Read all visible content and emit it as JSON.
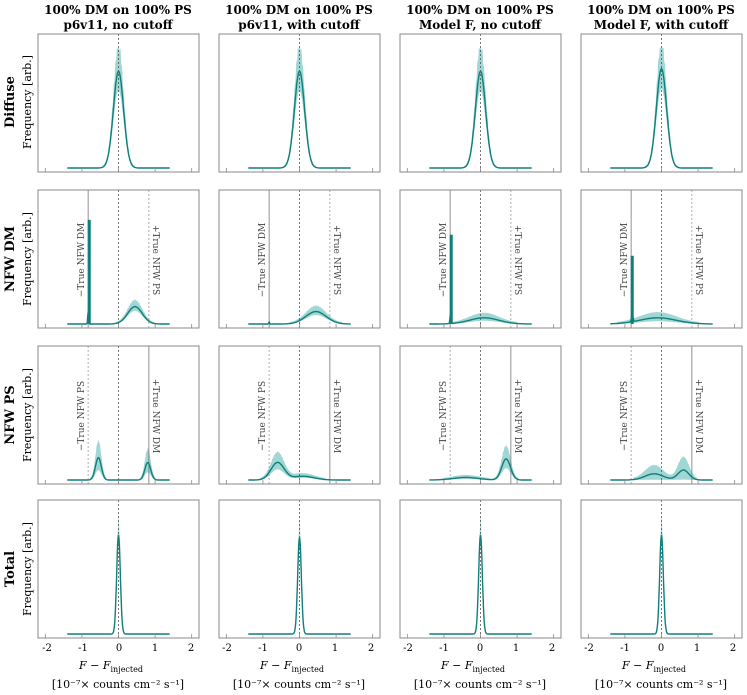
{
  "colors": {
    "band": "#8fcfcb",
    "line": "#0f7f7a",
    "frame": "#888888",
    "ref": "#555555"
  },
  "chart_data": {
    "type": "histogram-grid",
    "columns": [
      {
        "line1": "100% DM on 100% PS",
        "line2": "p6v11, no cutoff"
      },
      {
        "line1": "100% DM on 100% PS",
        "line2": "p6v11, with cutoff"
      },
      {
        "line1": "100% DM on 100% PS",
        "line2": "Model F, no cutoff"
      },
      {
        "line1": "100% DM on 100% PS",
        "line2": "Model F, with cutoff"
      }
    ],
    "rows": [
      {
        "name": "Diffuse",
        "ylabel": "Frequency [arb.]"
      },
      {
        "name": "NFW DM",
        "ylabel": "Frequency [arb.]"
      },
      {
        "name": "NFW PS",
        "ylabel": "Frequency [arb.]"
      },
      {
        "name": "Total",
        "ylabel": "Frequency [arb.]"
      }
    ],
    "xlim": [
      -2.2,
      2.2
    ],
    "ylim": [
      0,
      1
    ],
    "xticks": [
      "-2",
      "-1",
      "0",
      "1",
      "2"
    ],
    "xtick_values": [
      -2,
      -1,
      0,
      1,
      2
    ],
    "xlabel_main": "F − F",
    "xlabel_sub": "injected",
    "xlabel_units": "[10⁻⁷× counts cm⁻² s⁻¹]",
    "ref_lines": {
      "row1": [
        {
          "x": -0.83,
          "label": "−True NFW DM"
        },
        {
          "x": 0.83,
          "label": "+True NFW PS"
        }
      ],
      "row2": [
        {
          "x": -0.83,
          "label": "−True NFW PS"
        },
        {
          "x": 0.83,
          "label": "+True NFW DM"
        }
      ]
    },
    "panels": [
      [
        {
          "components": [
            {
              "mu": 0.0,
              "sigma": 0.14,
              "amp": 0.78
            }
          ],
          "band": 0.25
        },
        {
          "components": [
            {
              "mu": -0.83,
              "sigma": 0.012,
              "amp": 0.1
            },
            {
              "mu": 0.45,
              "sigma": 0.2,
              "amp": 0.14
            }
          ],
          "spike": {
            "x": -0.8,
            "h": 0.84
          },
          "band": 0.3
        },
        {
          "components": [
            {
              "mu": -0.55,
              "sigma": 0.08,
              "amp": 0.18
            },
            {
              "mu": 0.8,
              "sigma": 0.08,
              "amp": 0.14
            }
          ],
          "band": 0.7
        },
        {
          "components": [
            {
              "mu": 0.0,
              "sigma": 0.05,
              "amp": 0.8
            }
          ],
          "band": 0.12
        }
      ],
      [
        {
          "components": [
            {
              "mu": 0.0,
              "sigma": 0.14,
              "amp": 0.78
            }
          ],
          "band": 0.25
        },
        {
          "components": [
            {
              "mu": -0.83,
              "sigma": 0.012,
              "amp": 0.015
            },
            {
              "mu": 0.45,
              "sigma": 0.28,
              "amp": 0.1
            }
          ],
          "band": 0.35
        },
        {
          "components": [
            {
              "mu": -0.6,
              "sigma": 0.18,
              "amp": 0.14
            },
            {
              "mu": 0.1,
              "sigma": 0.3,
              "amp": 0.03
            }
          ],
          "band": 0.5
        },
        {
          "components": [
            {
              "mu": 0.0,
              "sigma": 0.05,
              "amp": 0.78
            }
          ],
          "band": 0.12
        }
      ],
      [
        {
          "components": [
            {
              "mu": 0.0,
              "sigma": 0.14,
              "amp": 0.78
            }
          ],
          "band": 0.25
        },
        {
          "components": [
            {
              "mu": -0.82,
              "sigma": 0.015,
              "amp": 0.08
            },
            {
              "mu": 0.1,
              "sigma": 0.4,
              "amp": 0.05
            }
          ],
          "spike": {
            "x": -0.8,
            "h": 0.72
          },
          "band": 0.6
        },
        {
          "components": [
            {
              "mu": 0.7,
              "sigma": 0.12,
              "amp": 0.17
            },
            {
              "mu": -0.4,
              "sigma": 0.35,
              "amp": 0.02
            }
          ],
          "band": 0.55
        },
        {
          "components": [
            {
              "mu": 0.0,
              "sigma": 0.05,
              "amp": 0.8
            }
          ],
          "band": 0.12
        }
      ],
      [
        {
          "components": [
            {
              "mu": 0.0,
              "sigma": 0.14,
              "amp": 0.8
            }
          ],
          "band": 0.25
        },
        {
          "components": [
            {
              "mu": -0.8,
              "sigma": 0.02,
              "amp": 0.06
            },
            {
              "mu": -0.1,
              "sigma": 0.5,
              "amp": 0.05
            }
          ],
          "spike": {
            "x": -0.8,
            "h": 0.55
          },
          "band": 0.7
        },
        {
          "components": [
            {
              "mu": 0.6,
              "sigma": 0.15,
              "amp": 0.08
            },
            {
              "mu": -0.2,
              "sigma": 0.25,
              "amp": 0.05
            }
          ],
          "band": 1.2
        },
        {
          "components": [
            {
              "mu": 0.0,
              "sigma": 0.05,
              "amp": 0.8
            }
          ],
          "band": 0.12
        }
      ]
    ]
  }
}
